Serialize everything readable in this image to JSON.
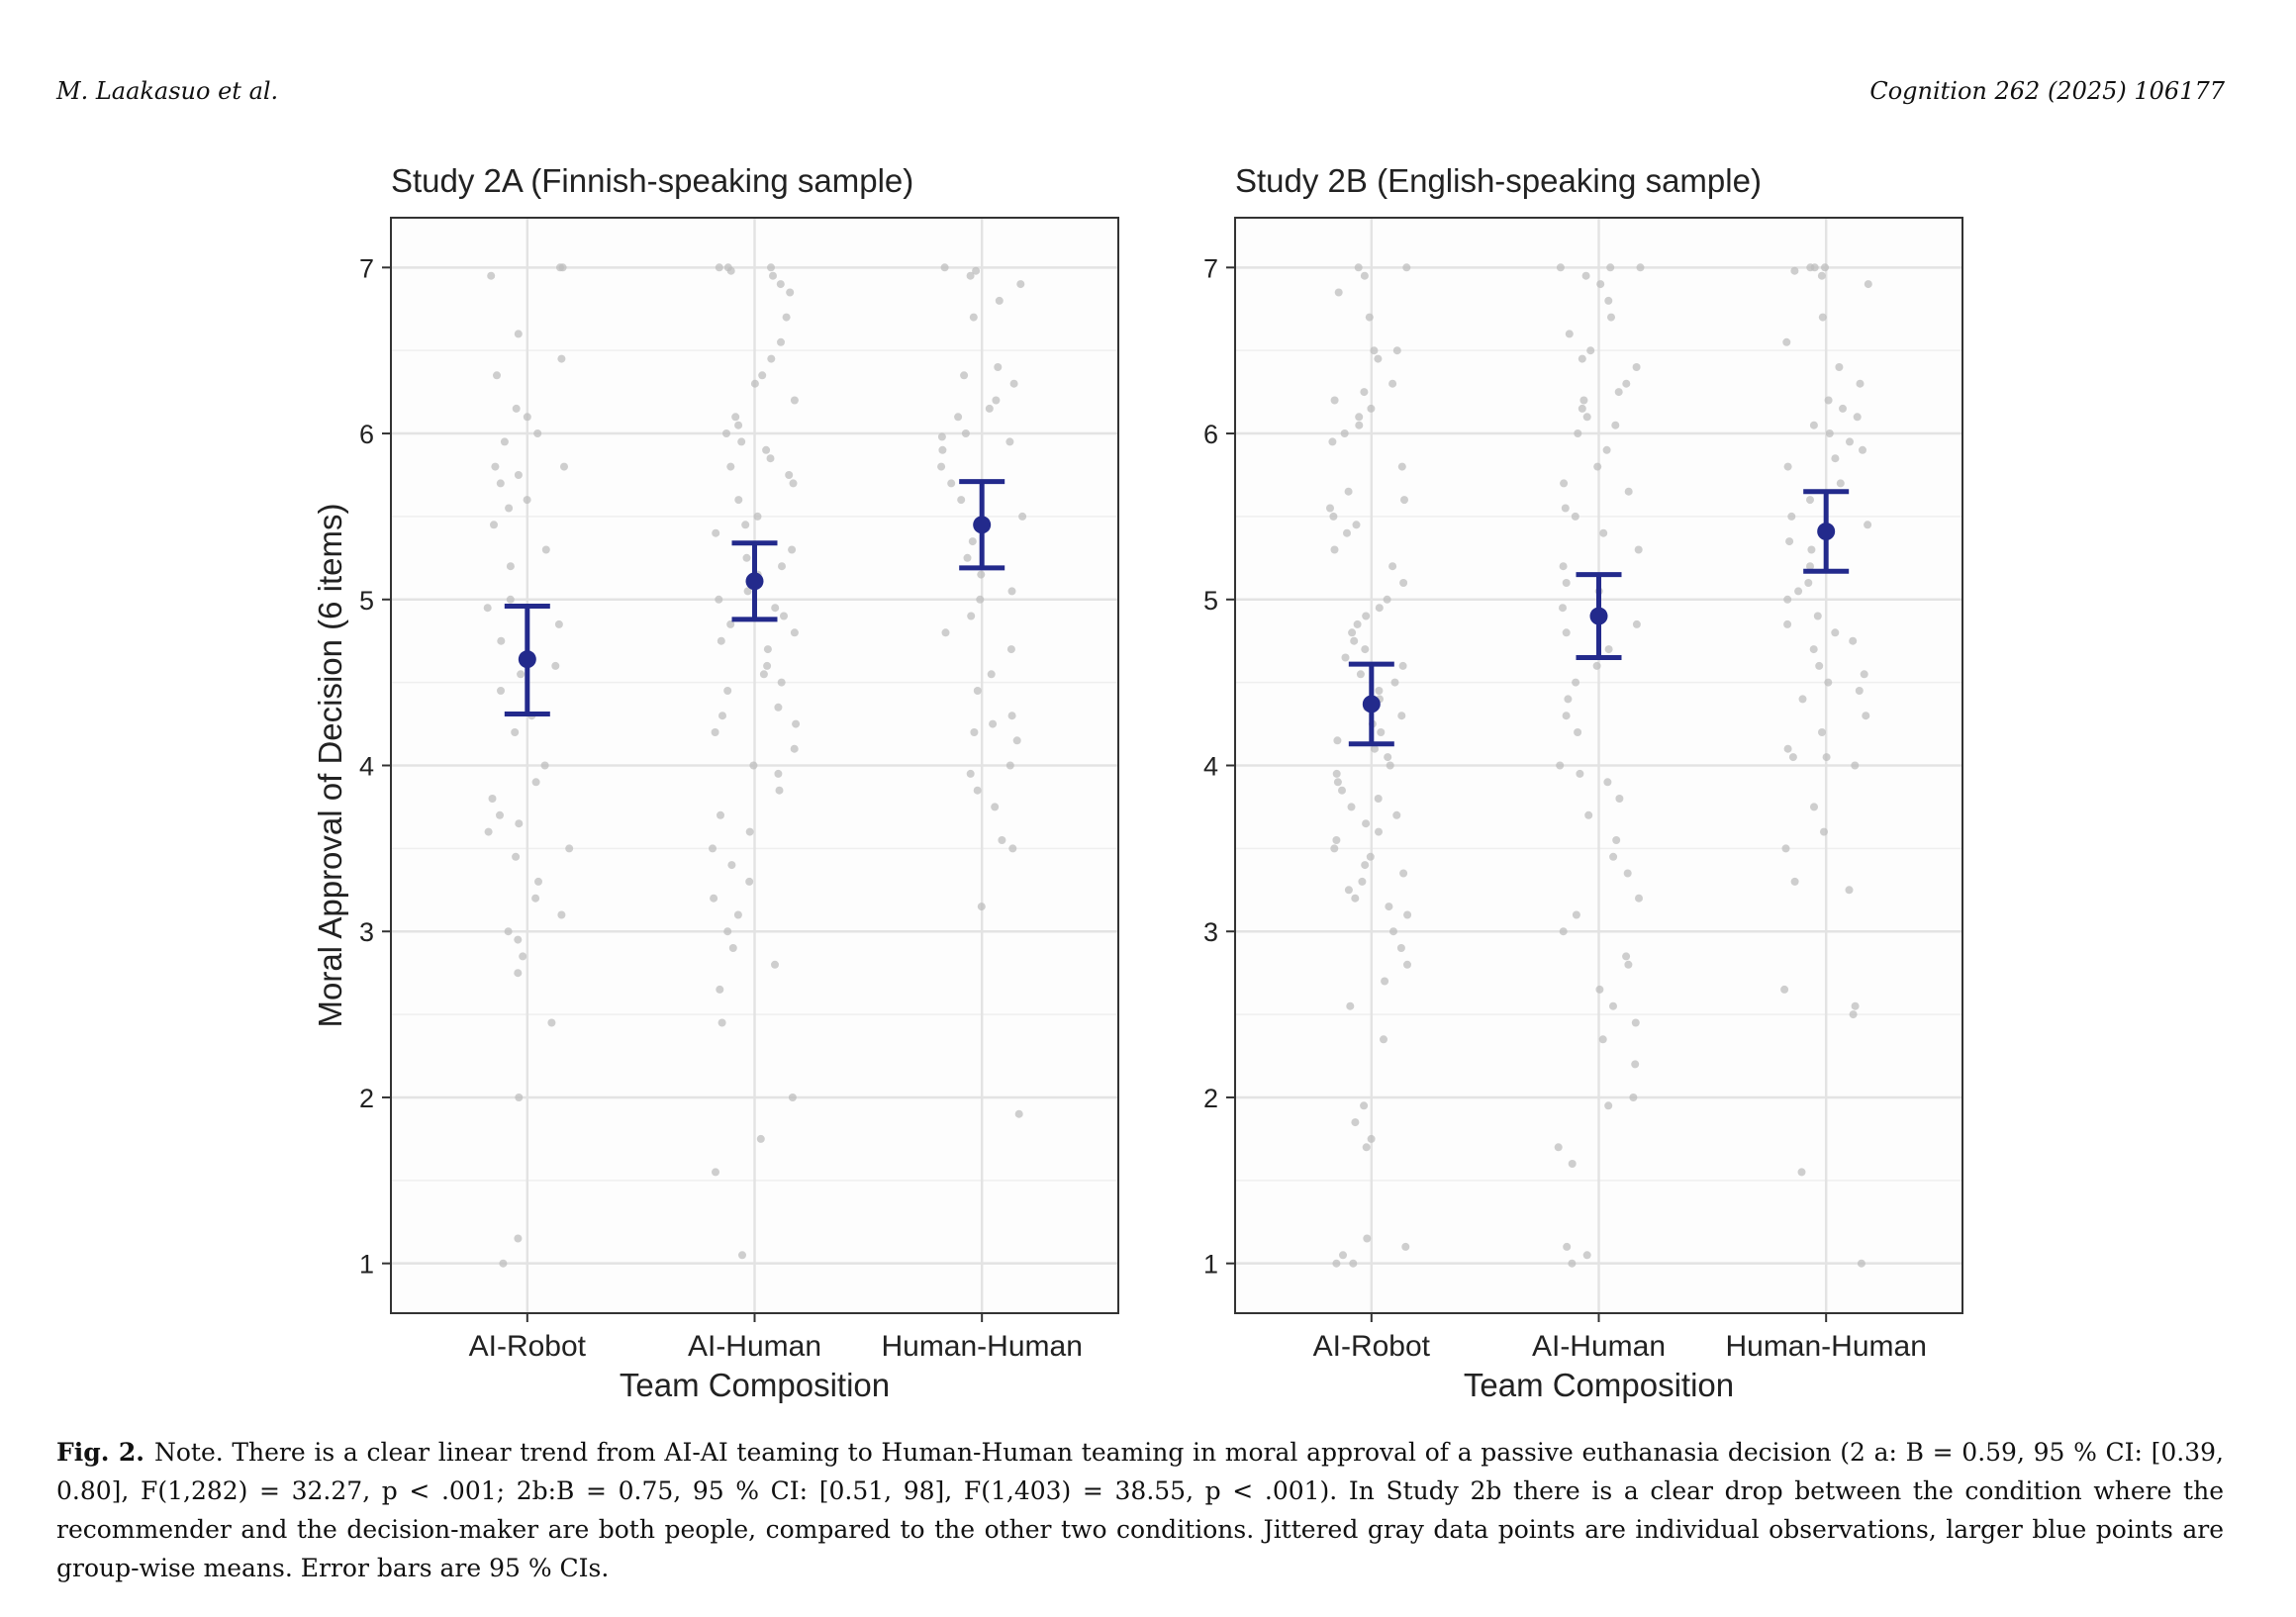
{
  "header": {
    "left": "M. Laakasuo et al.",
    "right": "Cognition 262 (2025) 106177"
  },
  "figure": {
    "caption_label": "Fig. 2.",
    "caption_text": "Note. There is a clear linear trend from AI-AI teaming to Human-Human teaming in moral approval of a passive euthanasia decision (2 a: B = 0.59, 95 % CI: [0.39, 0.80], F(1,282) = 32.27, p < .001; 2b:B = 0.75, 95 % CI: [0.51, 98], F(1,403) = 38.55, p < .001). In Study 2b there is a clear drop between the condition where the recommender and the decision-maker are both people, compared to the other two conditions. Jittered gray data points are individual observations, larger blue points are group-wise means. Error bars are 95 % CIs."
  },
  "colors": {
    "mean": "#232a8c",
    "points": "#bdbdbd",
    "grid": "#e3e3e3",
    "panel_bg": "#fdfdfd",
    "border": "#333333"
  },
  "chart_data": [
    {
      "type": "scatter",
      "title": "Study 2A (Finnish-speaking sample)",
      "xlabel": "Team Composition",
      "ylabel": "Moral Approval of Decision (6 items)",
      "categories": [
        "AI-Robot",
        "AI-Human",
        "Human-Human"
      ],
      "ylim": [
        0.7,
        7.3
      ],
      "yticks": [
        1,
        2,
        3,
        4,
        5,
        6,
        7
      ],
      "grid": true,
      "means": [
        4.64,
        5.11,
        5.45
      ],
      "ci_low": [
        4.31,
        4.88,
        5.19
      ],
      "ci_high": [
        4.96,
        5.34,
        5.71
      ],
      "observations": [
        [
          7.0,
          7.0,
          6.95,
          6.6,
          6.45,
          6.35,
          6.15,
          6.1,
          6.0,
          5.95,
          5.8,
          5.8,
          5.75,
          5.7,
          5.6,
          5.55,
          5.45,
          5.3,
          5.2,
          5.0,
          4.95,
          4.85,
          4.75,
          4.6,
          4.55,
          4.45,
          4.3,
          4.2,
          4.0,
          3.9,
          3.8,
          3.7,
          3.65,
          3.6,
          3.5,
          3.45,
          3.3,
          3.2,
          3.1,
          3.0,
          2.95,
          2.85,
          2.75,
          2.45,
          2.0,
          1.15,
          1.0
        ],
        [
          7.0,
          7.0,
          7.0,
          6.98,
          6.95,
          6.9,
          6.85,
          6.7,
          6.55,
          6.45,
          6.35,
          6.3,
          6.2,
          6.1,
          6.05,
          6.0,
          5.95,
          5.9,
          5.85,
          5.8,
          5.75,
          5.7,
          5.6,
          5.5,
          5.45,
          5.4,
          5.3,
          5.25,
          5.2,
          5.15,
          5.05,
          5.0,
          4.95,
          4.9,
          4.85,
          4.8,
          4.75,
          4.7,
          4.6,
          4.55,
          4.5,
          4.45,
          4.35,
          4.3,
          4.25,
          4.2,
          4.1,
          4.0,
          3.95,
          3.85,
          3.7,
          3.6,
          3.5,
          3.4,
          3.3,
          3.2,
          3.1,
          3.0,
          2.9,
          2.8,
          2.65,
          2.45,
          2.0,
          1.75,
          1.55,
          1.05
        ],
        [
          7.0,
          6.98,
          6.95,
          6.9,
          6.8,
          6.7,
          6.4,
          6.35,
          6.3,
          6.2,
          6.15,
          6.1,
          6.0,
          5.98,
          5.95,
          5.9,
          5.8,
          5.7,
          5.6,
          5.5,
          5.45,
          5.35,
          5.25,
          5.15,
          5.05,
          5.0,
          4.9,
          4.8,
          4.7,
          4.55,
          4.45,
          4.3,
          4.25,
          4.2,
          4.15,
          4.0,
          3.95,
          3.85,
          3.75,
          3.55,
          3.5,
          3.15,
          1.9
        ]
      ]
    },
    {
      "type": "scatter",
      "title": "Study 2B (English-speaking sample)",
      "xlabel": "Team Composition",
      "ylabel": "",
      "categories": [
        "AI-Robot",
        "AI-Human",
        "Human-Human"
      ],
      "ylim": [
        0.7,
        7.3
      ],
      "yticks": [
        1,
        2,
        3,
        4,
        5,
        6,
        7
      ],
      "grid": true,
      "means": [
        4.37,
        4.9,
        5.41
      ],
      "ci_low": [
        4.13,
        4.65,
        5.17
      ],
      "ci_high": [
        4.61,
        5.15,
        5.65
      ],
      "observations": [
        [
          7.0,
          7.0,
          6.95,
          6.85,
          6.7,
          6.5,
          6.5,
          6.45,
          6.3,
          6.25,
          6.2,
          6.15,
          6.1,
          6.05,
          6.0,
          5.95,
          5.8,
          5.65,
          5.6,
          5.55,
          5.5,
          5.45,
          5.4,
          5.3,
          5.2,
          5.1,
          5.0,
          4.95,
          4.9,
          4.85,
          4.8,
          4.75,
          4.7,
          4.65,
          4.6,
          4.55,
          4.5,
          4.45,
          4.4,
          4.35,
          4.3,
          4.25,
          4.2,
          4.15,
          4.1,
          4.05,
          4.0,
          3.95,
          3.9,
          3.85,
          3.8,
          3.75,
          3.7,
          3.65,
          3.6,
          3.55,
          3.5,
          3.45,
          3.4,
          3.35,
          3.3,
          3.25,
          3.2,
          3.15,
          3.1,
          3.0,
          2.9,
          2.8,
          2.7,
          2.55,
          2.35,
          1.95,
          1.85,
          1.75,
          1.7,
          1.15,
          1.1,
          1.05,
          1.0,
          1.0
        ],
        [
          7.0,
          7.0,
          7.0,
          6.95,
          6.9,
          6.8,
          6.7,
          6.6,
          6.5,
          6.45,
          6.4,
          6.3,
          6.25,
          6.2,
          6.15,
          6.1,
          6.05,
          6.0,
          5.9,
          5.8,
          5.7,
          5.65,
          5.55,
          5.5,
          5.4,
          5.3,
          5.2,
          5.1,
          5.05,
          4.95,
          4.85,
          4.8,
          4.7,
          4.6,
          4.5,
          4.4,
          4.3,
          4.2,
          4.0,
          3.95,
          3.9,
          3.8,
          3.7,
          3.55,
          3.45,
          3.35,
          3.2,
          3.1,
          3.0,
          2.85,
          2.8,
          2.65,
          2.55,
          2.45,
          2.35,
          2.2,
          2.0,
          1.95,
          1.7,
          1.6,
          1.1,
          1.05,
          1.0
        ],
        [
          7.0,
          7.0,
          7.0,
          6.98,
          6.95,
          6.9,
          6.7,
          6.55,
          6.4,
          6.3,
          6.2,
          6.15,
          6.1,
          6.05,
          6.0,
          5.95,
          5.9,
          5.85,
          5.8,
          5.7,
          5.6,
          5.5,
          5.45,
          5.35,
          5.3,
          5.2,
          5.1,
          5.05,
          5.0,
          4.9,
          4.85,
          4.8,
          4.75,
          4.7,
          4.6,
          4.55,
          4.5,
          4.45,
          4.4,
          4.3,
          4.2,
          4.1,
          4.05,
          4.05,
          4.0,
          3.75,
          3.6,
          3.5,
          3.3,
          3.25,
          2.65,
          2.55,
          2.5,
          1.55,
          1.0
        ]
      ]
    }
  ]
}
